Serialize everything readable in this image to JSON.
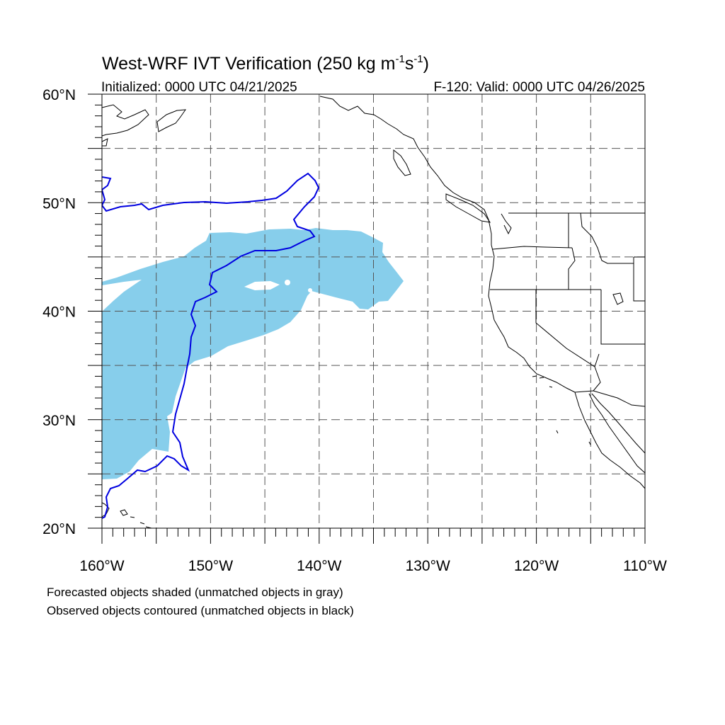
{
  "header": {
    "title": "West-WRF IVT Verification (250 kg m",
    "title_sup1": "-1",
    "title_mid": "s",
    "title_sup2": "-1",
    "title_end": ")",
    "initialized": "Initialized: 0000 UTC 04/21/2025",
    "valid": "F-120: Valid: 0000 UTC 04/26/2025"
  },
  "map": {
    "lon_range": [
      -160,
      -110
    ],
    "lat_range": [
      20,
      60
    ],
    "grid_spacing_deg": 5,
    "grid_style": "dashed",
    "lat_labels": [
      {
        "lat": 60,
        "text": "60°N"
      },
      {
        "lat": 50,
        "text": "50°N"
      },
      {
        "lat": 40,
        "text": "40°N"
      },
      {
        "lat": 30,
        "text": "30°N"
      },
      {
        "lat": 20,
        "text": "20°N"
      }
    ],
    "lon_labels": [
      {
        "lon": -160,
        "text": "160°W"
      },
      {
        "lon": -150,
        "text": "150°W"
      },
      {
        "lon": -140,
        "text": "140°W"
      },
      {
        "lon": -130,
        "text": "130°W"
      },
      {
        "lon": -120,
        "text": "120°W"
      },
      {
        "lon": -110,
        "text": "110°W"
      }
    ],
    "forecast_fill_color": "#87CEEB",
    "observed_contour_color": "#0000E0",
    "coastline_color": "#000000"
  },
  "captions": {
    "line1": "Forecasted objects shaded (unmatched objects in gray)",
    "line2": "Observed objects contoured (unmatched objects in black)"
  }
}
